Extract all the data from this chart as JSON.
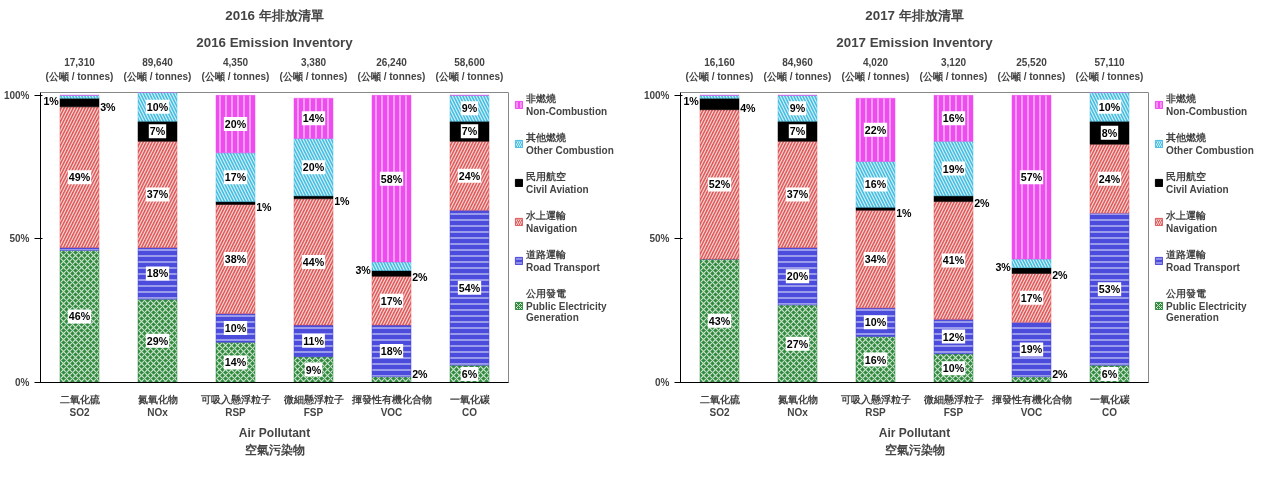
{
  "chart_data": [
    {
      "type": "bar",
      "stacked": true,
      "title": "2016 年排放清單",
      "subtitle": "2016 Emission Inventory",
      "xlabel": "Air Pollutant\n空氣污染物",
      "categories": [
        "二氧化硫\nSO2",
        "氮氧化物\nNOx",
        "可吸入懸浮粒子\nRSP",
        "微細懸浮粒子\nFSP",
        "揮發性有機化合物\nVOC",
        "一氧化碳\nCO"
      ],
      "annotations": [
        "17,310\n(公噸 / tonnes)",
        "89,640\n(公噸 / tonnes)",
        "4,350\n(公噸 / tonnes)",
        "3,380\n(公噸 / tonnes)",
        "26,240\n(公噸 / tonnes)",
        "58,600\n(公噸 / tonnes)"
      ],
      "ylim": [
        0,
        101
      ],
      "yticks": [
        {
          "value": 0,
          "label": "0%"
        },
        {
          "value": 50,
          "label": "50%"
        },
        {
          "value": 100,
          "label": "100%"
        }
      ],
      "grid": false,
      "legend": "right",
      "series": [
        {
          "name": "公用發電\nPublic Electricity\nGeneration",
          "color": "#2f8a3c",
          "values": [
            46,
            29,
            14,
            9,
            2,
            6
          ],
          "value_labels": [
            "46%",
            "29%",
            "14%",
            "9%",
            "2%",
            "6%"
          ]
        },
        {
          "name": "道路運輸\nRoad Transport",
          "color": "#4b4bdc",
          "values": [
            1,
            18,
            10,
            11,
            18,
            54
          ],
          "value_labels": [
            null,
            "18%",
            "10%",
            "11%",
            "18%",
            "54%"
          ]
        },
        {
          "name": "水上運輸\nNavigation",
          "color": "#e05a5a",
          "values": [
            49,
            37,
            38,
            44,
            17,
            24
          ],
          "value_labels": [
            "49%",
            "37%",
            "38%",
            "44%",
            "17%",
            "24%"
          ]
        },
        {
          "name": "民用航空\nCivil Aviation",
          "color": "#000000",
          "values": [
            3,
            7,
            1,
            1,
            2,
            7
          ],
          "value_labels": [
            "3%",
            "7%",
            "1%",
            "1%",
            "2%",
            "7%"
          ]
        },
        {
          "name": "其他燃燒\nOther Combustion",
          "color": "#44bde0",
          "values": [
            1,
            10,
            17,
            20,
            3,
            9
          ],
          "value_labels": [
            "1%",
            "10%",
            "17%",
            "20%",
            "3%",
            "9%"
          ]
        },
        {
          "name": "非燃燒\nNon-Combustion",
          "color": "#ee4cee",
          "values": [
            0,
            0,
            20,
            14,
            58,
            0
          ],
          "value_labels": [
            null,
            null,
            "20%",
            "14%",
            "58%",
            null
          ]
        }
      ]
    },
    {
      "type": "bar",
      "stacked": true,
      "title": "2017 年排放清單",
      "subtitle": "2017 Emission Inventory",
      "xlabel": "Air Pollutant\n空氣污染物",
      "categories": [
        "二氧化硫\nSO2",
        "氮氧化物\nNOx",
        "可吸入懸浮粒子\nRSP",
        "微細懸浮粒子\nFSP",
        "揮發性有機化合物\nVOC",
        "一氧化碳\nCO"
      ],
      "annotations": [
        "16,160\n(公噸 / tonnes)",
        "84,960\n(公噸 / tonnes)",
        "4,020\n(公噸 / tonnes)",
        "3,120\n(公噸 / tonnes)",
        "25,520\n(公噸 / tonnes)",
        "57,110\n(公噸 / tonnes)"
      ],
      "ylim": [
        0,
        101
      ],
      "yticks": [
        {
          "value": 0,
          "label": "0%"
        },
        {
          "value": 50,
          "label": "50%"
        },
        {
          "value": 100,
          "label": "100%"
        }
      ],
      "grid": false,
      "legend": "right",
      "series": [
        {
          "name": "公用發電\nPublic Electricity\nGeneration",
          "color": "#2f8a3c",
          "values": [
            43,
            27,
            16,
            10,
            2,
            6
          ],
          "value_labels": [
            "43%",
            "27%",
            "16%",
            "10%",
            "2%",
            "6%"
          ]
        },
        {
          "name": "道路運輸\nRoad Transport",
          "color": "#4b4bdc",
          "values": [
            0,
            20,
            10,
            12,
            19,
            53
          ],
          "value_labels": [
            null,
            "20%",
            "10%",
            "12%",
            "19%",
            "53%"
          ]
        },
        {
          "name": "水上運輸\nNavigation",
          "color": "#e05a5a",
          "values": [
            52,
            37,
            34,
            41,
            17,
            24
          ],
          "value_labels": [
            "52%",
            "37%",
            "34%",
            "41%",
            "17%",
            "24%"
          ]
        },
        {
          "name": "民用航空\nCivil Aviation",
          "color": "#000000",
          "values": [
            4,
            7,
            1,
            2,
            2,
            8
          ],
          "value_labels": [
            "4%",
            "7%",
            "1%",
            "2%",
            "2%",
            "8%"
          ]
        },
        {
          "name": "其他燃燒\nOther Combustion",
          "color": "#44bde0",
          "values": [
            1,
            9,
            16,
            19,
            3,
            10
          ],
          "value_labels": [
            "1%",
            "9%",
            "16%",
            "19%",
            "3%",
            "10%"
          ]
        },
        {
          "name": "非燃燒\nNon-Combustion",
          "color": "#ee4cee",
          "values": [
            0,
            0,
            22,
            16,
            57,
            0
          ],
          "value_labels": [
            null,
            null,
            "22%",
            "16%",
            "57%",
            null
          ]
        }
      ]
    }
  ]
}
